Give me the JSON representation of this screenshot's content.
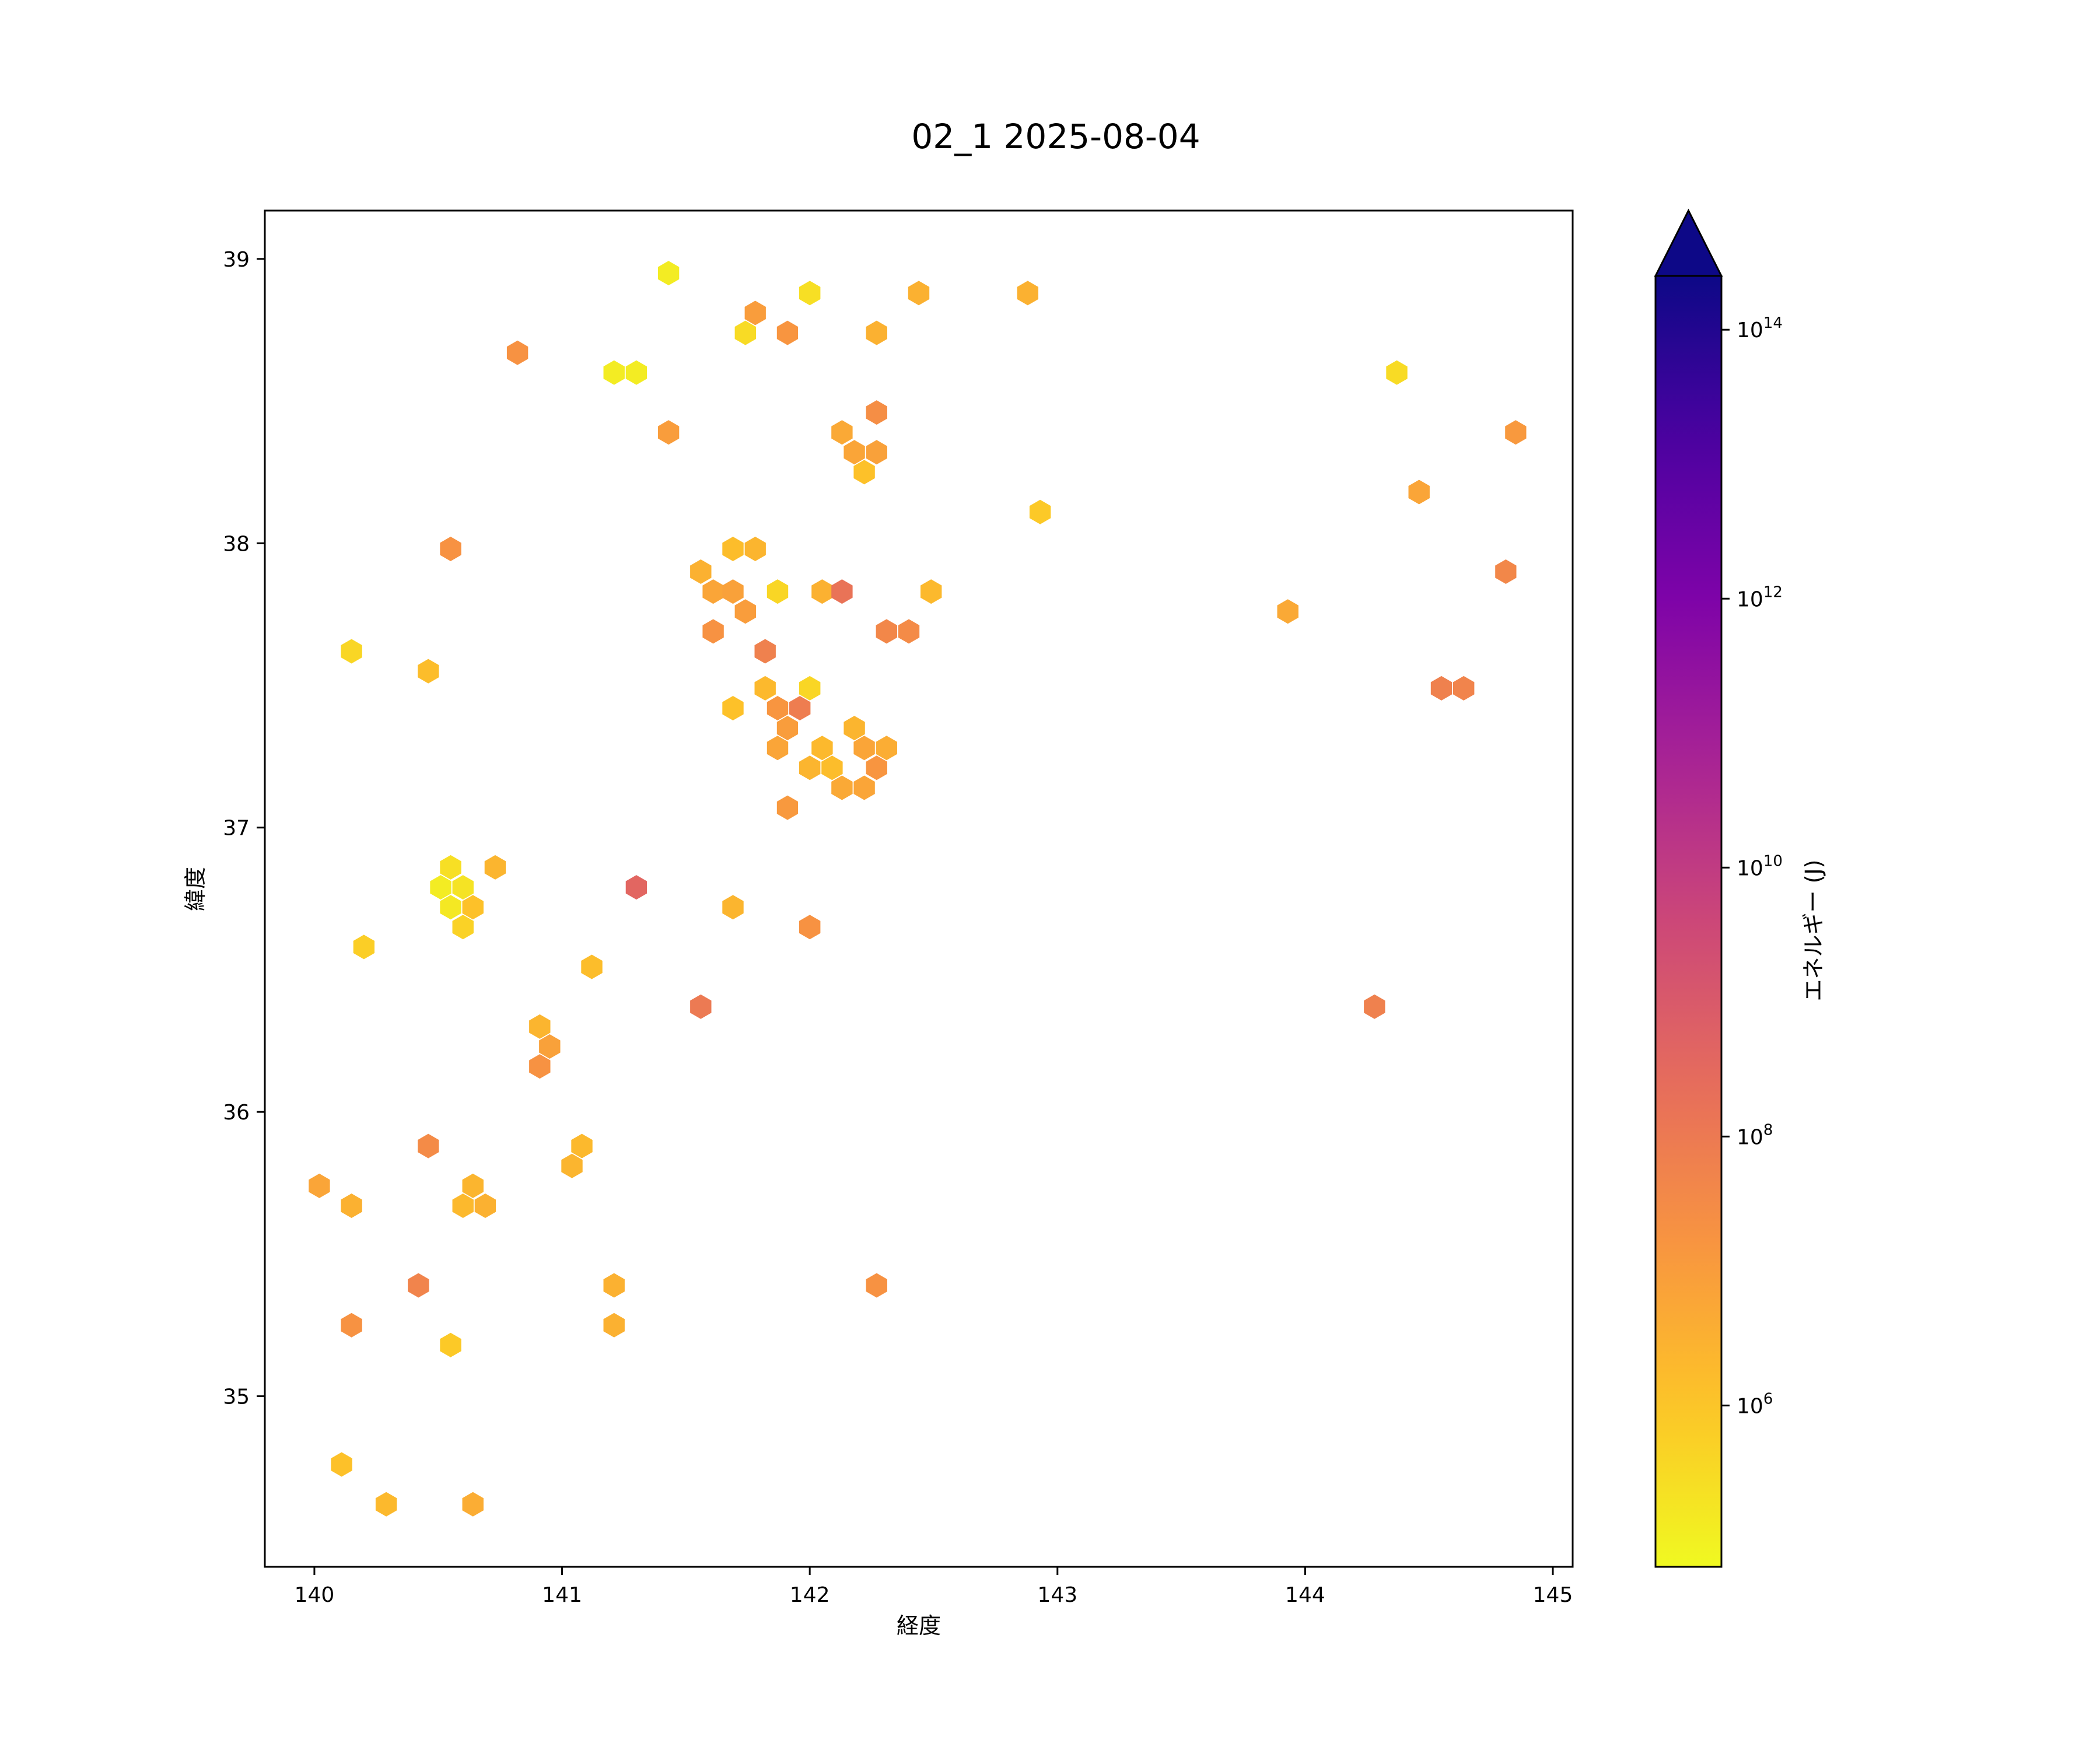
{
  "chart_data": {
    "type": "heatmap",
    "subtype": "hexbin",
    "title": "02_1 2025-08-04",
    "xlabel": "経度",
    "ylabel": "緯度",
    "xlim": [
      139.8,
      145.08
    ],
    "ylim": [
      34.4,
      39.17
    ],
    "x_ticks": [
      140,
      141,
      142,
      143,
      144,
      145
    ],
    "y_ticks": [
      35,
      36,
      37,
      38,
      39
    ],
    "grid": false,
    "colorbar": {
      "label": "エネルギー (J)",
      "scale": "log",
      "colormap": "plasma_r",
      "range_exponent": [
        4.8,
        14.4
      ],
      "tick_exponents": [
        6,
        8,
        10,
        12,
        14
      ],
      "tick_labels": [
        "10^6",
        "10^8",
        "10^10",
        "10^12",
        "10^14"
      ],
      "extend": "max"
    },
    "cell_value_unit": "log10(J)",
    "cells": [
      [
        141.43,
        38.95,
        5.1
      ],
      [
        142.0,
        38.88,
        5.4
      ],
      [
        142.44,
        38.88,
        6.5
      ],
      [
        142.88,
        38.88,
        6.5
      ],
      [
        141.78,
        38.81,
        7.0
      ],
      [
        141.74,
        38.74,
        5.5
      ],
      [
        141.91,
        38.74,
        7.2
      ],
      [
        142.27,
        38.74,
        6.5
      ],
      [
        140.82,
        38.67,
        7.3
      ],
      [
        141.21,
        38.6,
        5.1
      ],
      [
        141.3,
        38.6,
        5.1
      ],
      [
        144.37,
        38.6,
        5.5
      ],
      [
        142.27,
        38.46,
        7.4
      ],
      [
        141.43,
        38.39,
        7.0
      ],
      [
        142.13,
        38.39,
        6.7
      ],
      [
        144.85,
        38.39,
        7.1
      ],
      [
        142.18,
        38.32,
        6.8
      ],
      [
        142.27,
        38.32,
        6.9
      ],
      [
        142.22,
        38.25,
        6.1
      ],
      [
        144.46,
        38.18,
        6.8
      ],
      [
        142.93,
        38.11,
        5.9
      ],
      [
        140.55,
        37.98,
        7.3
      ],
      [
        141.69,
        37.98,
        6.2
      ],
      [
        141.78,
        37.98,
        6.4
      ],
      [
        141.56,
        37.9,
        6.5
      ],
      [
        144.81,
        37.9,
        7.6
      ],
      [
        141.61,
        37.83,
        6.8
      ],
      [
        141.69,
        37.83,
        6.9
      ],
      [
        141.87,
        37.83,
        5.6
      ],
      [
        142.05,
        37.83,
        6.5
      ],
      [
        142.13,
        37.83,
        8.2
      ],
      [
        142.49,
        37.83,
        6.3
      ],
      [
        141.74,
        37.76,
        7.0
      ],
      [
        143.93,
        37.76,
        6.7
      ],
      [
        141.61,
        37.69,
        7.3
      ],
      [
        142.31,
        37.69,
        7.6
      ],
      [
        142.4,
        37.69,
        7.5
      ],
      [
        140.15,
        37.62,
        5.6
      ],
      [
        141.82,
        37.62,
        7.8
      ],
      [
        140.46,
        37.55,
        6.2
      ],
      [
        141.82,
        37.49,
        6.3
      ],
      [
        142.0,
        37.49,
        5.6
      ],
      [
        144.55,
        37.49,
        7.8
      ],
      [
        144.64,
        37.49,
        7.7
      ],
      [
        141.69,
        37.42,
        6.1
      ],
      [
        141.87,
        37.42,
        7.2
      ],
      [
        141.96,
        37.42,
        7.9
      ],
      [
        141.91,
        37.35,
        7.0
      ],
      [
        142.18,
        37.35,
        6.4
      ],
      [
        141.87,
        37.28,
        6.8
      ],
      [
        142.05,
        37.28,
        6.3
      ],
      [
        142.22,
        37.28,
        6.8
      ],
      [
        142.31,
        37.28,
        6.6
      ],
      [
        142.0,
        37.21,
        6.4
      ],
      [
        142.09,
        37.21,
        6.2
      ],
      [
        142.27,
        37.21,
        7.2
      ],
      [
        142.13,
        37.14,
        6.7
      ],
      [
        142.22,
        37.14,
        6.8
      ],
      [
        141.91,
        37.07,
        7.1
      ],
      [
        140.55,
        36.86,
        5.4
      ],
      [
        140.73,
        36.86,
        6.4
      ],
      [
        140.51,
        36.79,
        5.1
      ],
      [
        140.6,
        36.79,
        5.3
      ],
      [
        141.3,
        36.79,
        8.6
      ],
      [
        140.55,
        36.72,
        5.2
      ],
      [
        140.64,
        36.72,
        6.1
      ],
      [
        141.69,
        36.72,
        6.4
      ],
      [
        140.6,
        36.65,
        5.7
      ],
      [
        142.0,
        36.65,
        7.3
      ],
      [
        140.2,
        36.58,
        5.8
      ],
      [
        141.12,
        36.51,
        6.2
      ],
      [
        141.56,
        36.37,
        8.0
      ],
      [
        144.28,
        36.37,
        7.8
      ],
      [
        140.91,
        36.3,
        6.4
      ],
      [
        140.95,
        36.23,
        6.9
      ],
      [
        140.91,
        36.16,
        7.3
      ],
      [
        140.46,
        35.88,
        7.5
      ],
      [
        141.08,
        35.88,
        6.3
      ],
      [
        141.04,
        35.81,
        6.4
      ],
      [
        140.02,
        35.74,
        6.8
      ],
      [
        140.64,
        35.74,
        6.4
      ],
      [
        140.15,
        35.67,
        6.5
      ],
      [
        140.6,
        35.67,
        6.3
      ],
      [
        140.69,
        35.67,
        6.5
      ],
      [
        140.42,
        35.39,
        7.7
      ],
      [
        141.21,
        35.39,
        6.5
      ],
      [
        142.27,
        35.39,
        7.3
      ],
      [
        140.15,
        35.25,
        7.3
      ],
      [
        141.21,
        35.25,
        6.5
      ],
      [
        140.55,
        35.18,
        5.9
      ],
      [
        140.11,
        34.76,
        6.1
      ],
      [
        140.29,
        34.62,
        6.3
      ],
      [
        140.64,
        34.62,
        6.6
      ]
    ]
  }
}
